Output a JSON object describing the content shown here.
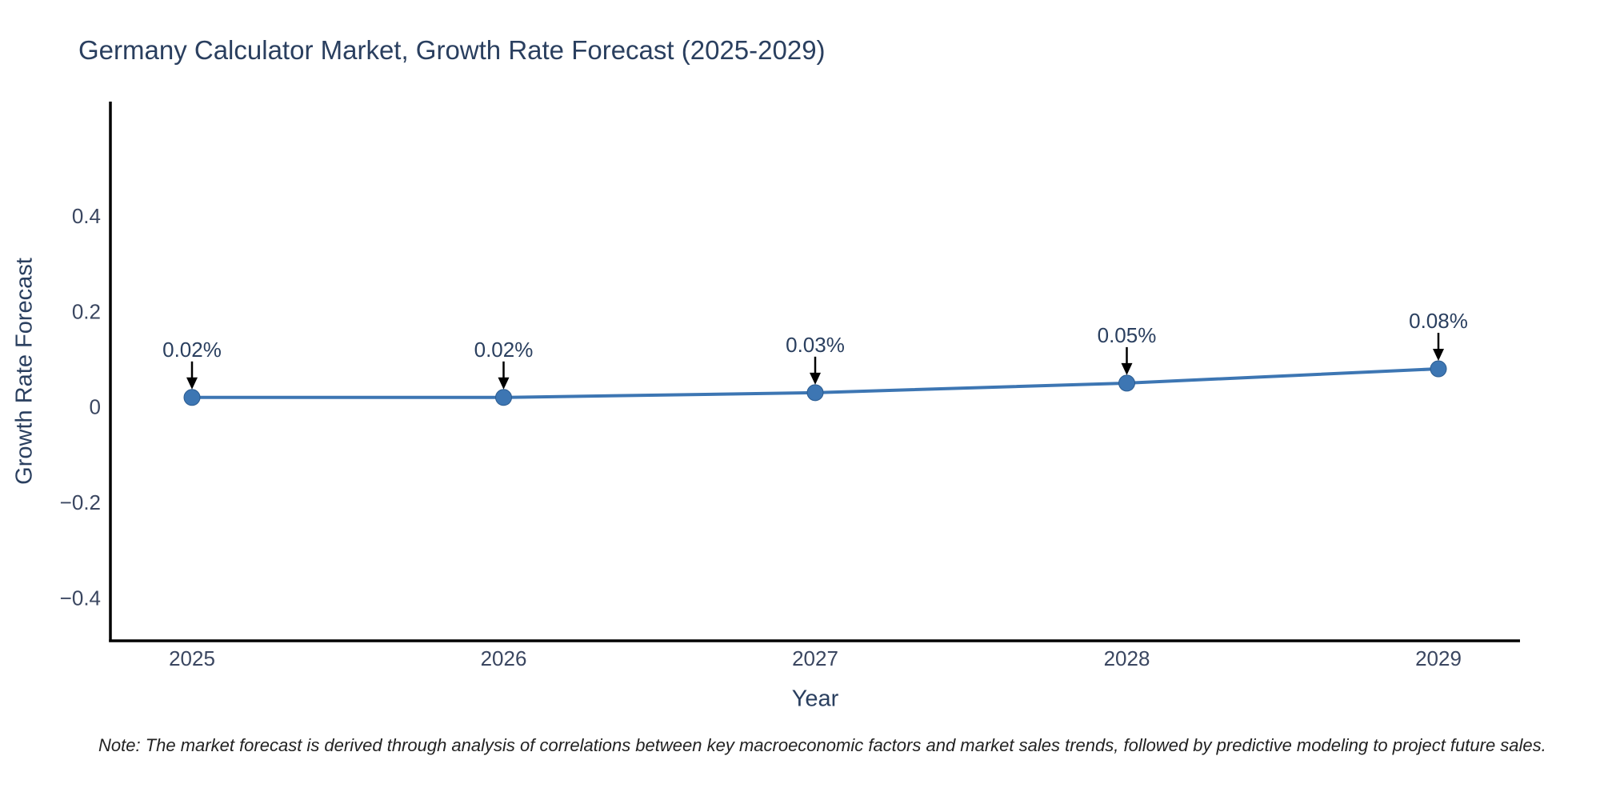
{
  "page": {
    "background": "#ffffff",
    "note": "Note: The market forecast is derived through analysis of correlations between key macroeconomic factors and market sales trends, followed by predictive modeling to project future sales."
  },
  "chart_data": {
    "type": "line",
    "title": "Germany Calculator Market, Growth Rate Forecast (2025-2029)",
    "xlabel": "Year",
    "ylabel": "Growth Rate Forecast",
    "categories": [
      "2025",
      "2026",
      "2027",
      "2028",
      "2029"
    ],
    "series": [
      {
        "name": "Growth Rate Forecast",
        "values": [
          0.02,
          0.02,
          0.03,
          0.05,
          0.08
        ]
      }
    ],
    "point_labels": [
      "0.02%",
      "0.02%",
      "0.03%",
      "0.05%",
      "0.08%"
    ],
    "yticks": [
      0.4,
      0.2,
      0,
      -0.2,
      -0.4
    ],
    "ylim": [
      -0.49,
      0.64
    ],
    "grid": false,
    "legend": false,
    "colors": {
      "line": "#3d76b3",
      "marker": "#3d76b3",
      "marker_edge": "#2b5c91",
      "axis_line": "#000000",
      "tick_text": "#3a4660",
      "title_text": "#2a3f5f",
      "annotation_text": "#2a3f5f",
      "annotation_arrow": "#000000"
    }
  }
}
